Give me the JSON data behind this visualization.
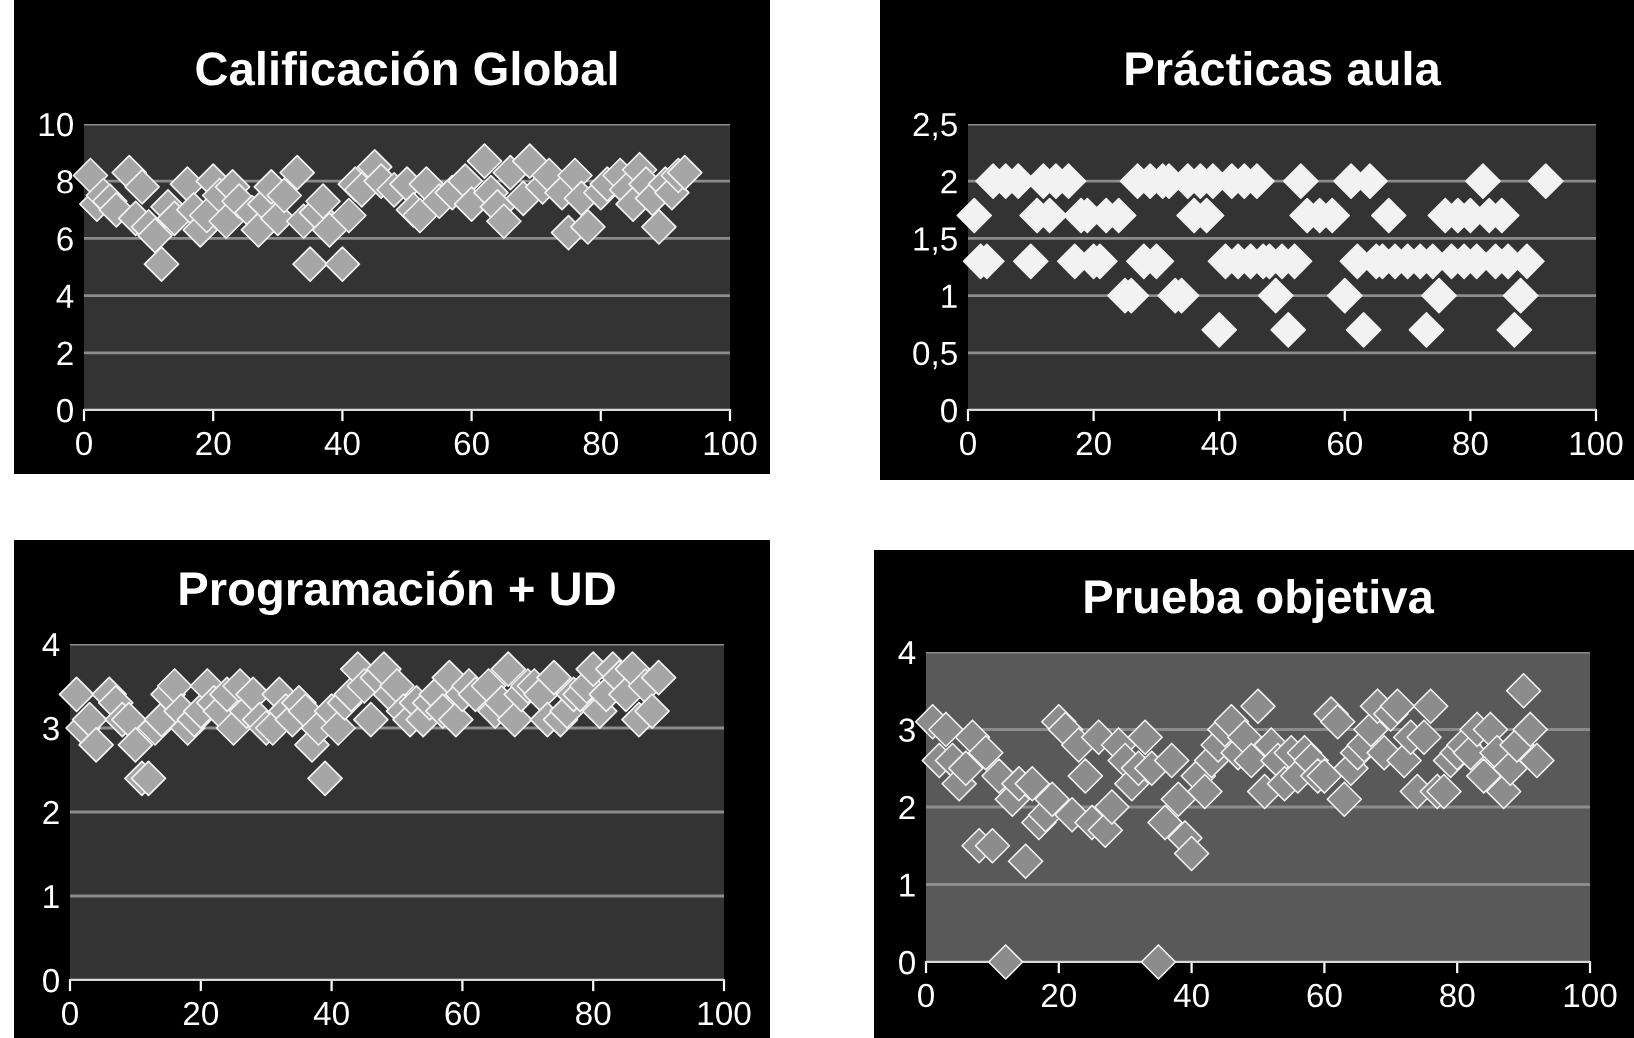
{
  "chart_data": [
    {
      "type": "scatter",
      "title": "Calificación Global",
      "marker": "diamond",
      "grid": "y",
      "xlim": [
        0,
        100
      ],
      "ylim": [
        0,
        10
      ],
      "xticks": [
        0,
        20,
        40,
        60,
        80,
        100
      ],
      "yticks": [
        0,
        2,
        4,
        6,
        8,
        10
      ],
      "series": [
        {
          "color": "#a6a6a6",
          "x": [
            1,
            2,
            3,
            4,
            5,
            7,
            8,
            9,
            10,
            11,
            12,
            13,
            14,
            16,
            17,
            18,
            19,
            20,
            21,
            22,
            23,
            24,
            26,
            27,
            28,
            29,
            30,
            31,
            33,
            34,
            35,
            36,
            37,
            38,
            40,
            41,
            42,
            43,
            45,
            46,
            48,
            50,
            51,
            52,
            53,
            55,
            57,
            59,
            60,
            62,
            63,
            64,
            65,
            66,
            68,
            69,
            71,
            72,
            74,
            75,
            76,
            77,
            78,
            80,
            81,
            83,
            84,
            85,
            86,
            87,
            88,
            89,
            90,
            91,
            92,
            93
          ],
          "values": [
            8.2,
            7.2,
            7.5,
            7.3,
            7.0,
            8.3,
            6.7,
            7.8,
            6.4,
            6.1,
            5.1,
            7.1,
            6.7,
            7.9,
            7.0,
            6.3,
            6.8,
            8.0,
            7.5,
            6.6,
            7.8,
            7.3,
            6.9,
            6.3,
            7.2,
            7.8,
            6.7,
            7.5,
            8.3,
            6.6,
            5.1,
            6.9,
            7.3,
            6.3,
            5.1,
            6.8,
            7.9,
            7.7,
            8.5,
            8.0,
            7.7,
            7.9,
            7.0,
            6.8,
            7.9,
            7.3,
            7.6,
            8.0,
            7.2,
            8.7,
            7.6,
            7.1,
            6.6,
            8.3,
            7.4,
            8.7,
            7.8,
            8.2,
            7.6,
            6.2,
            8.2,
            7.4,
            6.4,
            7.6,
            7.9,
            8.2,
            7.7,
            7.2,
            8.4,
            7.9,
            7.4,
            6.4,
            7.9,
            7.6,
            8.2,
            8.3
          ]
        }
      ]
    },
    {
      "type": "scatter",
      "title": "Prácticas aula",
      "marker": "diamond",
      "grid": "y",
      "xlim": [
        0,
        100
      ],
      "ylim": [
        0,
        2.5
      ],
      "xticks": [
        0,
        20,
        40,
        60,
        80,
        100
      ],
      "yticks": [
        0,
        {
          "value": 0.5,
          "label": "0,5"
        },
        1,
        {
          "value": 1.5,
          "label": "1,5"
        },
        2,
        {
          "value": 2.5,
          "label": "2,5"
        }
      ],
      "series": [
        {
          "color": "#f2f2f2",
          "x": [
            1,
            2,
            3,
            4,
            6,
            8,
            10,
            11,
            12,
            13,
            14,
            16,
            17,
            18,
            19,
            20,
            21,
            22,
            24,
            25,
            26,
            27,
            28,
            29,
            30,
            31,
            32,
            33,
            34,
            35,
            36,
            37,
            38,
            39,
            40,
            41,
            42,
            43,
            44,
            45,
            46,
            47,
            48,
            49,
            50,
            51,
            52,
            53,
            54,
            56,
            58,
            60,
            61,
            62,
            63,
            64,
            65,
            66,
            67,
            68,
            70,
            72,
            73,
            74,
            75,
            76,
            77,
            78,
            79,
            80,
            81,
            82,
            83,
            84,
            85,
            86,
            87,
            88,
            89,
            92
          ],
          "values": [
            1.7,
            1.3,
            1.3,
            2,
            2,
            2,
            1.3,
            1.7,
            2,
            1.7,
            2,
            2,
            1.3,
            1.7,
            1.7,
            1.3,
            1.3,
            1.7,
            1.7,
            1,
            1,
            2,
            1.3,
            2,
            1.3,
            2,
            2,
            1,
            1,
            2,
            1.7,
            2,
            1.7,
            2,
            0.7,
            1.3,
            2,
            1.3,
            2,
            1.3,
            2,
            1.3,
            1.3,
            1,
            1.3,
            0.7,
            1.3,
            2,
            1.7,
            1.7,
            1.7,
            1,
            2,
            1.3,
            0.7,
            2,
            1.3,
            1.3,
            1.7,
            1.3,
            1.3,
            1.3,
            0.7,
            1.3,
            1,
            1.7,
            1.3,
            1.7,
            1.3,
            1.7,
            1.3,
            2,
            1.7,
            1.3,
            1.7,
            1.3,
            0.7,
            1,
            1.3,
            2
          ]
        }
      ]
    },
    {
      "type": "scatter",
      "title": "Programación + UD",
      "marker": "diamond",
      "grid": "y",
      "xlim": [
        0,
        100
      ],
      "ylim": [
        0,
        4
      ],
      "xticks": [
        0,
        20,
        40,
        60,
        80,
        100
      ],
      "yticks": [
        0,
        1,
        2,
        3,
        4
      ],
      "series": [
        {
          "color": "#a6a6a6",
          "x": [
            1,
            2,
            3,
            4,
            6,
            7,
            8,
            9,
            10,
            11,
            12,
            13,
            14,
            15,
            16,
            17,
            18,
            19,
            20,
            21,
            22,
            23,
            24,
            25,
            26,
            27,
            28,
            29,
            30,
            31,
            32,
            33,
            34,
            35,
            36,
            37,
            38,
            39,
            40,
            41,
            42,
            43,
            44,
            45,
            46,
            47,
            48,
            49,
            50,
            51,
            52,
            53,
            54,
            55,
            56,
            57,
            58,
            59,
            60,
            61,
            62,
            64,
            65,
            66,
            67,
            68,
            69,
            70,
            71,
            72,
            73,
            74,
            75,
            76,
            77,
            78,
            79,
            80,
            81,
            82,
            83,
            84,
            85,
            86,
            87,
            88,
            89,
            90
          ],
          "values": [
            3.4,
            3.0,
            3.1,
            2.8,
            3.4,
            3.3,
            3.1,
            3.1,
            2.8,
            2.4,
            2.4,
            3.0,
            3.1,
            3.4,
            3.5,
            3.2,
            3.0,
            3.1,
            3.2,
            3.5,
            3.3,
            3.2,
            3.4,
            3.0,
            3.5,
            3.2,
            3.4,
            3.1,
            3.0,
            3.0,
            3.4,
            3.2,
            3.1,
            3.3,
            3.2,
            2.8,
            3.0,
            2.4,
            3.2,
            3.0,
            3.3,
            3.4,
            3.7,
            3.5,
            3.1,
            3.6,
            3.7,
            3.4,
            3.5,
            3.2,
            3.1,
            3.3,
            3.1,
            3.3,
            3.4,
            3.2,
            3.6,
            3.1,
            3.4,
            3.5,
            3.4,
            3.5,
            3.2,
            3.3,
            3.7,
            3.1,
            3.4,
            3.5,
            3.5,
            3.4,
            3.1,
            3.6,
            3.1,
            3.2,
            3.4,
            3.4,
            3.5,
            3.7,
            3.2,
            3.4,
            3.7,
            3.6,
            3.4,
            3.7,
            3.1,
            3.5,
            3.2,
            3.6
          ]
        }
      ]
    },
    {
      "type": "scatter",
      "title": "Prueba objetiva",
      "marker": "diamond",
      "grid": "y",
      "xlim": [
        0,
        100
      ],
      "ylim": [
        0,
        4
      ],
      "xticks": [
        0,
        20,
        40,
        60,
        80,
        100
      ],
      "yticks": [
        0,
        1,
        2,
        3,
        4
      ],
      "series": [
        {
          "color": "#8c8c8c",
          "x": [
            1,
            2,
            3,
            4,
            5,
            6,
            7,
            8,
            9,
            10,
            11,
            12,
            13,
            14,
            15,
            16,
            17,
            18,
            19,
            20,
            21,
            22,
            23,
            24,
            25,
            26,
            27,
            28,
            29,
            30,
            31,
            32,
            33,
            34,
            35,
            36,
            37,
            38,
            39,
            40,
            41,
            42,
            43,
            44,
            45,
            46,
            47,
            48,
            49,
            50,
            51,
            52,
            53,
            54,
            55,
            56,
            57,
            58,
            59,
            60,
            61,
            62,
            63,
            64,
            65,
            66,
            67,
            68,
            69,
            70,
            71,
            72,
            73,
            74,
            75,
            76,
            77,
            78,
            79,
            80,
            81,
            82,
            83,
            84,
            85,
            86,
            87,
            88,
            89,
            90,
            91,
            92
          ],
          "values": [
            3.1,
            2.6,
            3.0,
            2.6,
            2.3,
            2.5,
            2.9,
            1.5,
            2.7,
            1.5,
            2.4,
            0,
            2.1,
            2.3,
            1.3,
            2.3,
            1.8,
            1.9,
            2.1,
            3.1,
            3.0,
            1.9,
            2.8,
            2.4,
            1.8,
            2.9,
            1.7,
            2.0,
            2.8,
            2.6,
            2.3,
            2.5,
            2.9,
            2.5,
            0,
            1.8,
            2.6,
            2.1,
            1.6,
            1.4,
            2.4,
            2.2,
            2.6,
            2.8,
            3.0,
            3.1,
            2.7,
            2.9,
            2.6,
            3.3,
            2.2,
            2.8,
            2.6,
            2.3,
            2.7,
            2.4,
            2.7,
            2.6,
            2.4,
            2.4,
            3.2,
            3.1,
            2.1,
            2.5,
            2.7,
            2.8,
            3.0,
            3.3,
            2.7,
            3.2,
            3.3,
            2.6,
            2.9,
            2.2,
            2.9,
            3.3,
            2.2,
            2.2,
            2.6,
            2.7,
            2.8,
            2.7,
            3.0,
            2.4,
            3.0,
            2.7,
            2.2,
            2.5,
            2.8,
            3.5,
            3.0,
            2.6
          ]
        }
      ]
    }
  ]
}
